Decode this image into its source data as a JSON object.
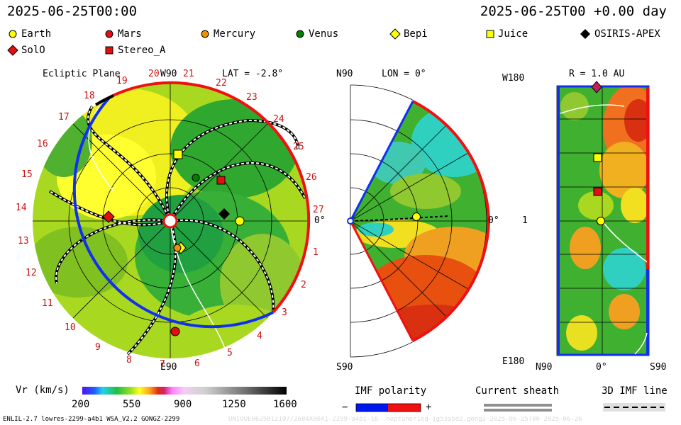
{
  "header": {
    "date_left": "2025-06-25T00:00",
    "date_right": "2025-06-25T00 +0.00 day"
  },
  "legend": [
    {
      "name": "Earth",
      "shape": "circle",
      "color": "#ffff00"
    },
    {
      "name": "Mars",
      "shape": "circle",
      "color": "#e01010"
    },
    {
      "name": "Mercury",
      "shape": "circle",
      "color": "#f09000"
    },
    {
      "name": "Venus",
      "shape": "circle",
      "color": "#008000"
    },
    {
      "name": "Bepi",
      "shape": "diamond",
      "color": "#ffff00"
    },
    {
      "name": "Juice",
      "shape": "square",
      "color": "#ffff00"
    },
    {
      "name": "OSIRIS-APEX",
      "shape": "diamond",
      "color": "#000000"
    },
    {
      "name": "SolO",
      "shape": "diamond",
      "color": "#e01010"
    },
    {
      "name": "Stereo_A",
      "shape": "square",
      "color": "#e01010"
    }
  ],
  "panels": {
    "ecliptic": {
      "title": "Ecliptic Plane",
      "top_label": "W90",
      "bottom_label": "E90",
      "right_label": "0°",
      "lat_label": "LAT = -2.8°",
      "carrington_labels": [
        "1",
        "2",
        "3",
        "4",
        "5",
        "6",
        "7",
        "8",
        "9",
        "10",
        "11",
        "12",
        "13",
        "14",
        "15",
        "16",
        "17",
        "18",
        "19",
        "20",
        "21",
        "22",
        "23",
        "24",
        "25",
        "26",
        "27"
      ]
    },
    "meridional": {
      "top_label": "N90",
      "bottom_label": "S90",
      "right_label": "0°",
      "lon_label": "LON = 0°"
    },
    "radial": {
      "title": "R = 1.0 AU",
      "top_label": "W180",
      "mid_label": "1",
      "bottom_label": "E180",
      "x_labels": [
        "N90",
        "0°",
        "S90"
      ]
    }
  },
  "colorbar": {
    "title": "Vr (km/s)",
    "ticks": [
      "200",
      "550",
      "900",
      "1250",
      "1600"
    ]
  },
  "imf": {
    "title": "IMF polarity",
    "minus": "−",
    "plus": "+",
    "neg_color": "#0018f0",
    "pos_color": "#f01010"
  },
  "current_sheath": {
    "title": "Current sheath"
  },
  "imf_line": {
    "title": "3D IMF line"
  },
  "footer": {
    "left": "ENLIL-2.7 lowres-2299-a4b1 WSA_V2.2 GONGZ-2299",
    "right": "UNIOUE0625012107/2684X80X1-2299-a4b1-16-.noptuner1ed-1g53a5d2.gong2-2025-06-25T00  2025-06-26"
  }
}
